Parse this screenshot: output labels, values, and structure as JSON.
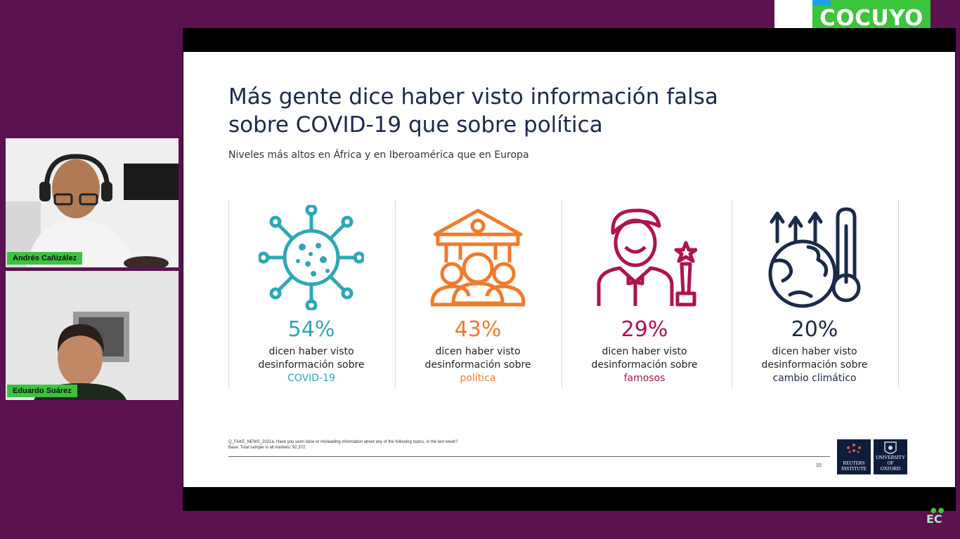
{
  "brand": {
    "name": "COCUYO"
  },
  "participants": [
    {
      "name": "Andrés Cañizález"
    },
    {
      "name": "Eduardo Suárez"
    }
  ],
  "slide": {
    "title_line1": "Más gente dice haber visto información falsa",
    "title_line2": "sobre COVID-19 que sobre política",
    "subtitle": "Niveles más altos en África y en Iberoamérica que en Europa",
    "stats": [
      {
        "percent": "54%",
        "line1": "dicen haber visto",
        "line2": "desinformación sobre",
        "topic": "COVID-19",
        "color": "#2ea7b5",
        "icon": "virus-icon"
      },
      {
        "percent": "43%",
        "line1": "dicen haber visto",
        "line2": "desinformación sobre",
        "topic": "política",
        "color": "#f27a2a",
        "icon": "government-building-icon"
      },
      {
        "percent": "29%",
        "line1": "dicen haber visto",
        "line2": "desinformación sobre",
        "topic": "famosos",
        "color": "#b0124f",
        "icon": "celebrity-icon"
      },
      {
        "percent": "20%",
        "line1": "dicen haber visto",
        "line2": "desinformación sobre",
        "topic": "cambio climático",
        "color": "#1b2a4a",
        "icon": "climate-thermometer-icon"
      }
    ],
    "footnote_q": "Q_FAKE_NEWS_2021a. Have you seen false or misleading information about any of the following topics, in the last week?",
    "footnote_base": "Base: Total sample in all markets: 92,372",
    "page_number": "10",
    "logo1_line1": "REUTERS",
    "logo1_line2": "INSTITUTE",
    "logo2_line1": "UNIVERSITY OF",
    "logo2_line2": "OXFORD"
  },
  "watermark": "EC"
}
